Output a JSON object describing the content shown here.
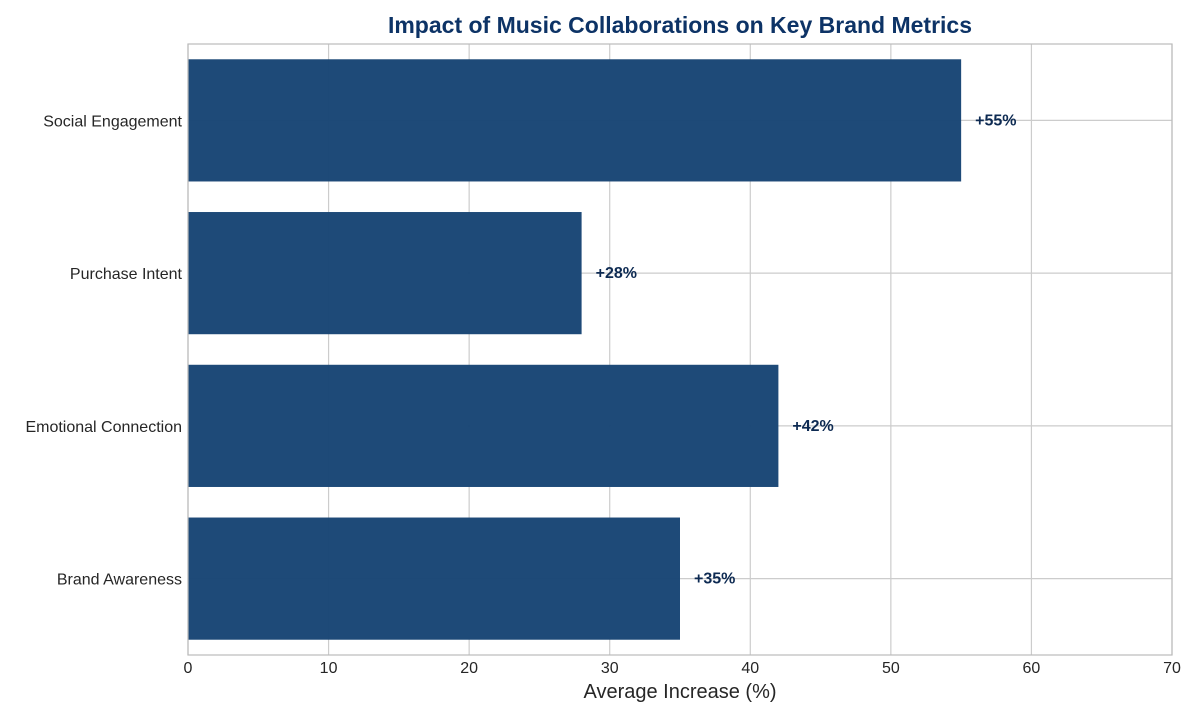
{
  "chart_data": {
    "type": "bar",
    "orientation": "horizontal",
    "title": "Impact of Music Collaborations on Key Brand Metrics",
    "xlabel": "Average Increase (%)",
    "ylabel": "",
    "categories": [
      "Brand Awareness",
      "Emotional Connection",
      "Purchase Intent",
      "Social Engagement"
    ],
    "values": [
      35,
      42,
      28,
      55
    ],
    "data_labels": [
      "+35%",
      "+42%",
      "+28%",
      "+55%"
    ],
    "xlim": [
      0,
      70
    ],
    "xticks": [
      0,
      10,
      20,
      30,
      40,
      50,
      60,
      70
    ],
    "xtick_labels": [
      "0",
      "10",
      "20",
      "30",
      "40",
      "50",
      "60",
      "70"
    ],
    "grid": true,
    "colors": {
      "bar": "#1a4675",
      "title": "#0d3366",
      "data_label": "#0d2a52",
      "grid": "#cccccc",
      "frame": "#bbbbbb"
    }
  }
}
